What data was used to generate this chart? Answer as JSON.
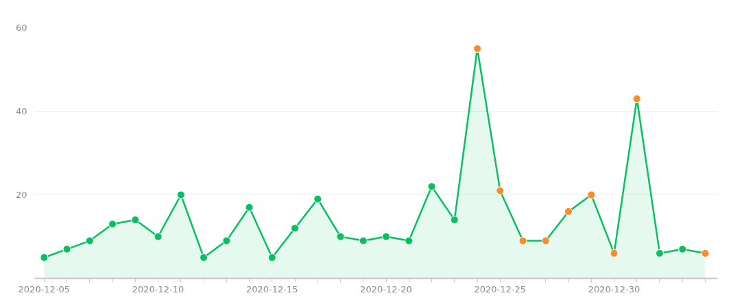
{
  "chart_data": {
    "type": "area",
    "x": [
      "2020-12-05",
      "2020-12-06",
      "2020-12-07",
      "2020-12-08",
      "2020-12-09",
      "2020-12-10",
      "2020-12-11",
      "2020-12-12",
      "2020-12-13",
      "2020-12-14",
      "2020-12-15",
      "2020-12-16",
      "2020-12-17",
      "2020-12-18",
      "2020-12-19",
      "2020-12-20",
      "2020-12-21",
      "2020-12-22",
      "2020-12-23",
      "2020-12-24",
      "2020-12-25",
      "2020-12-26",
      "2020-12-27",
      "2020-12-28",
      "2020-12-29",
      "2020-12-30",
      "2020-12-31",
      "2021-01-01",
      "2021-01-02",
      "2021-01-03"
    ],
    "series": [
      {
        "color": "#07c160",
        "values": [
          5,
          7,
          9,
          13,
          14,
          10,
          20,
          5,
          9,
          17,
          5,
          12,
          19,
          10,
          9,
          10,
          9,
          22,
          14,
          55,
          21,
          9,
          9,
          16,
          20,
          6,
          43,
          6,
          7,
          6
        ],
        "colors": [
          "#07c160",
          "#07c160",
          "#07c160",
          "#07c160",
          "#07c160",
          "#07c160",
          "#07c160",
          "#07c160",
          "#07c160",
          "#07c160",
          "#07c160",
          "#07c160",
          "#07c160",
          "#07c160",
          "#07c160",
          "#07c160",
          "#07c160",
          "#07c160",
          "#07c160",
          "#fa8c2b",
          "#fa8c2b",
          "#fa8c2b",
          "#fa8c2b",
          "#fa8c2b",
          "#fa8c2b",
          "#fa8c2b",
          "#fa8c2b",
          "#07c160",
          "#07c160",
          "#fa8c2b"
        ]
      }
    ],
    "xlim": [
      "2020-12-04T14:00",
      "2021-01-03T13:00"
    ],
    "xticks": [
      {
        "value": "2020-12-05",
        "label": "2020-12-05"
      },
      {
        "value": "2020-12-06",
        "label": null
      },
      {
        "value": "2020-12-07",
        "label": null
      },
      {
        "value": "2020-12-08",
        "label": null
      },
      {
        "value": "2020-12-09",
        "label": null
      },
      {
        "value": "2020-12-10",
        "label": "2020-12-10"
      },
      {
        "value": "2020-12-11",
        "label": null
      },
      {
        "value": "2020-12-12",
        "label": null
      },
      {
        "value": "2020-12-13",
        "label": null
      },
      {
        "value": "2020-12-14",
        "label": null
      },
      {
        "value": "2020-12-15",
        "label": "2020-12-15"
      },
      {
        "value": "2020-12-16",
        "label": null
      },
      {
        "value": "2020-12-17",
        "label": null
      },
      {
        "value": "2020-12-18",
        "label": null
      },
      {
        "value": "2020-12-19",
        "label": null
      },
      {
        "value": "2020-12-20",
        "label": "2020-12-20"
      },
      {
        "value": "2020-12-21",
        "label": null
      },
      {
        "value": "2020-12-22",
        "label": null
      },
      {
        "value": "2020-12-23",
        "label": null
      },
      {
        "value": "2020-12-24",
        "label": null
      },
      {
        "value": "2020-12-25",
        "label": "2020-12-25"
      },
      {
        "value": "2020-12-26",
        "label": null
      },
      {
        "value": "2020-12-27",
        "label": null
      },
      {
        "value": "2020-12-28",
        "label": null
      },
      {
        "value": "2020-12-29",
        "label": null
      },
      {
        "value": "2020-12-30",
        "label": "2020-12-30"
      },
      {
        "value": "2020-12-31",
        "label": null
      },
      {
        "value": "2021-01-01",
        "label": null
      },
      {
        "value": "2021-01-02",
        "label": null
      },
      {
        "value": "2021-01-03",
        "label": null
      }
    ],
    "ylim": [
      0,
      60
    ],
    "yticks": [
      20,
      40,
      60
    ],
    "grid": "y",
    "marker": "circle",
    "line_style": "solid"
  }
}
